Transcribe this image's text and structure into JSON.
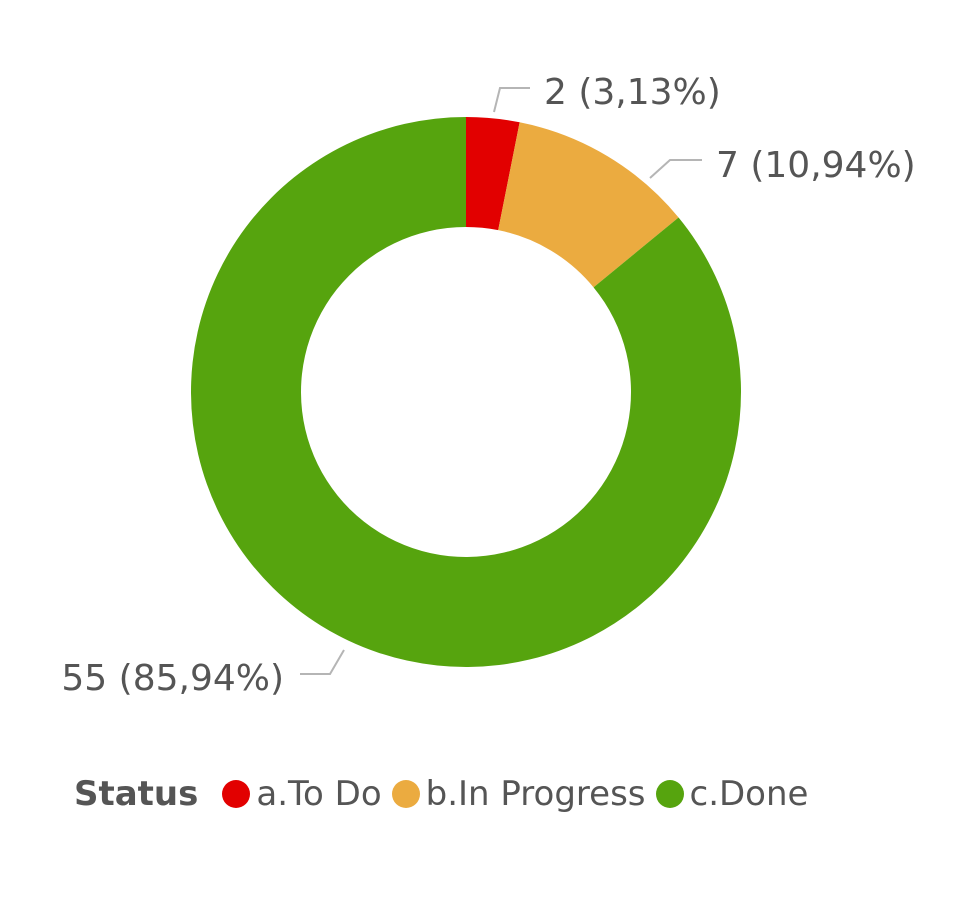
{
  "chart_data": {
    "type": "pie",
    "variant": "donut",
    "categories": [
      "a.To Do",
      "b.In Progress",
      "c.Done"
    ],
    "values": [
      2,
      7,
      55
    ],
    "percent_labels": [
      "3,13%",
      "10,94%",
      "85,94%"
    ],
    "data_labels": [
      "2 (3,13%)",
      "7 (10,94%)",
      "55 (85,94%)"
    ],
    "colors": [
      "#e20000",
      "#ebab40",
      "#56a40e"
    ],
    "legend_title": "Status",
    "legend_position": "bottom-left"
  }
}
